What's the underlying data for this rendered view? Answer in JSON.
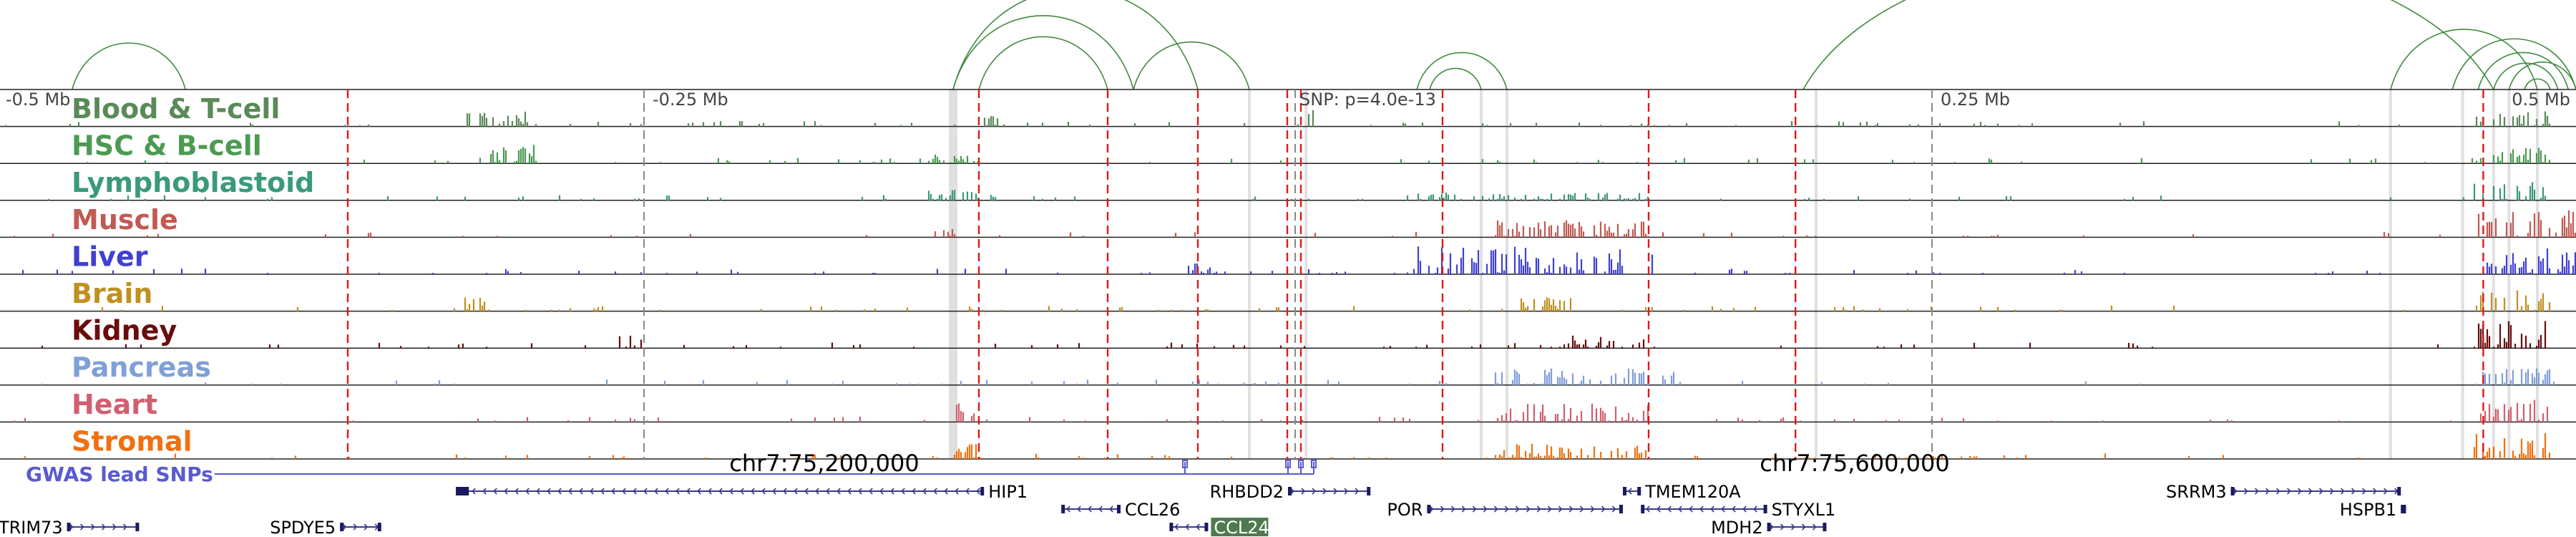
{
  "axis": {
    "ticks": [
      {
        "pos": -0.5,
        "label": "-0.5 Mb"
      },
      {
        "pos": -0.25,
        "label": "-0.25 Mb"
      },
      {
        "pos": 0.25,
        "label": "0.25 Mb"
      },
      {
        "pos": 0.5,
        "label": "0.5 Mb"
      }
    ],
    "range_mb": [
      -0.5,
      0.5
    ],
    "snp_label": "SNP: p=4.0e-13",
    "snp_pos_mb": 0.0
  },
  "tracks": [
    {
      "label": "Blood & T-cell",
      "color": "#5a8a58"
    },
    {
      "label": "HSC & B-cell",
      "color": "#4c9a52"
    },
    {
      "label": "Lymphoblastoid",
      "color": "#3a9a7a"
    },
    {
      "label": "Muscle",
      "color": "#c15a52"
    },
    {
      "label": "Liver",
      "color": "#4040d0"
    },
    {
      "label": "Brain",
      "color": "#c09020"
    },
    {
      "label": "Kidney",
      "color": "#6a0c0c"
    },
    {
      "label": "Pancreas",
      "color": "#7f9fd8"
    },
    {
      "label": "Heart",
      "color": "#d06070"
    },
    {
      "label": "Stromal",
      "color": "#f07010"
    }
  ],
  "gwas": {
    "label": "GWAS lead SNPs",
    "color": "#5a5ad0",
    "snps_mb": [
      -0.04,
      0.0,
      0.005,
      0.01
    ]
  },
  "coords": [
    {
      "label": "chr7:75,200,000",
      "pos_mb": -0.18
    },
    {
      "label": "chr7:75,600,000",
      "pos_mb": 0.22
    }
  ],
  "red_lines_mb": [
    -0.365,
    -0.12,
    -0.07,
    -0.035,
    0.005,
    0.06,
    0.14,
    0.197,
    0.464
  ],
  "gray_bands_mb": [
    -0.13,
    -0.015,
    0.007,
    0.075,
    0.085,
    0.205,
    0.428,
    0.456,
    0.468,
    0.474,
    0.485
  ],
  "genes": [
    {
      "name": "TRIM73",
      "start": -0.474,
      "end": -0.446,
      "row": 2,
      "strand": "+",
      "label": "left"
    },
    {
      "name": "SPDYE5",
      "start": -0.368,
      "end": -0.352,
      "row": 2,
      "strand": "+",
      "label": "left"
    },
    {
      "name": "HIP1",
      "start": -0.323,
      "end": -0.118,
      "row": 0,
      "strand": "-",
      "label": "right"
    },
    {
      "name": "CCL26",
      "start": -0.088,
      "end": -0.065,
      "row": 1,
      "strand": "-",
      "label": "right"
    },
    {
      "name": "CCL24",
      "start": -0.046,
      "end": -0.031,
      "row": 2,
      "strand": "-",
      "label": "right-box"
    },
    {
      "name": "RHBDD2",
      "start": 0.0,
      "end": 0.032,
      "row": 0,
      "strand": "+",
      "label": "left"
    },
    {
      "name": "POR",
      "start": 0.054,
      "end": 0.13,
      "row": 1,
      "strand": "+",
      "label": "left"
    },
    {
      "name": "TMEM120A",
      "start": 0.13,
      "end": 0.137,
      "row": 0,
      "strand": "-",
      "label": "right"
    },
    {
      "name": "STYXL1",
      "start": 0.137,
      "end": 0.186,
      "row": 1,
      "strand": "-",
      "label": "right"
    },
    {
      "name": "MDH2",
      "start": 0.186,
      "end": 0.209,
      "row": 2,
      "strand": "+",
      "label": "left"
    },
    {
      "name": "SRRM3",
      "start": 0.366,
      "end": 0.432,
      "row": 0,
      "strand": "+",
      "label": "left"
    },
    {
      "name": "HSPB1",
      "start": 0.432,
      "end": 0.434,
      "row": 1,
      "strand": "+",
      "label": "left"
    }
  ],
  "loops": [
    [
      -0.472,
      -0.428
    ],
    [
      -0.13,
      -0.035
    ],
    [
      -0.13,
      -0.06
    ],
    [
      -0.12,
      -0.07
    ],
    [
      -0.06,
      -0.015
    ],
    [
      0.05,
      0.085
    ],
    [
      0.055,
      0.075
    ],
    [
      0.2,
      0.468
    ],
    [
      0.428,
      0.485
    ],
    [
      0.452,
      0.5
    ],
    [
      0.462,
      0.497
    ],
    [
      0.468,
      0.493
    ],
    [
      0.474,
      0.5
    ],
    [
      0.48,
      0.49
    ]
  ]
}
